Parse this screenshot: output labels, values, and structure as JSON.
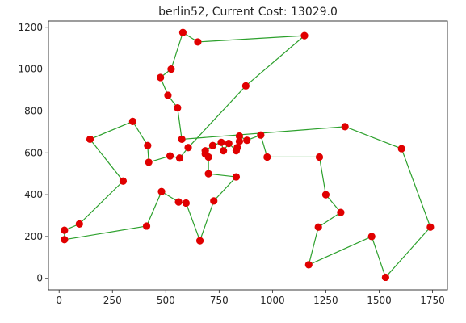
{
  "chart_data": {
    "type": "scatter",
    "title": "berlin52, Current Cost: 13029.0",
    "xlabel": "",
    "ylabel": "",
    "xlim": [
      -50,
      1820
    ],
    "ylim": [
      -55,
      1230
    ],
    "xticks": [
      0,
      250,
      500,
      750,
      1000,
      1250,
      1500,
      1750
    ],
    "yticks": [
      0,
      200,
      400,
      600,
      800,
      1000,
      1200
    ],
    "grid": false,
    "colors": {
      "points": "#e00000",
      "route": "#2ca02c",
      "axes": "#262626"
    },
    "cities": [
      {
        "x": 565,
        "y": 575
      },
      {
        "x": 25,
        "y": 185
      },
      {
        "x": 345,
        "y": 750
      },
      {
        "x": 945,
        "y": 685
      },
      {
        "x": 845,
        "y": 655
      },
      {
        "x": 880,
        "y": 660
      },
      {
        "x": 25,
        "y": 230
      },
      {
        "x": 525,
        "y": 1000
      },
      {
        "x": 580,
        "y": 1175
      },
      {
        "x": 650,
        "y": 1130
      },
      {
        "x": 1605,
        "y": 620
      },
      {
        "x": 1220,
        "y": 580
      },
      {
        "x": 1465,
        "y": 200
      },
      {
        "x": 1530,
        "y": 5
      },
      {
        "x": 845,
        "y": 680
      },
      {
        "x": 725,
        "y": 370
      },
      {
        "x": 145,
        "y": 665
      },
      {
        "x": 415,
        "y": 635
      },
      {
        "x": 510,
        "y": 875
      },
      {
        "x": 560,
        "y": 365
      },
      {
        "x": 300,
        "y": 465
      },
      {
        "x": 520,
        "y": 585
      },
      {
        "x": 480,
        "y": 415
      },
      {
        "x": 835,
        "y": 625
      },
      {
        "x": 975,
        "y": 580
      },
      {
        "x": 1215,
        "y": 245
      },
      {
        "x": 1320,
        "y": 315
      },
      {
        "x": 1250,
        "y": 400
      },
      {
        "x": 660,
        "y": 180
      },
      {
        "x": 410,
        "y": 250
      },
      {
        "x": 420,
        "y": 555
      },
      {
        "x": 575,
        "y": 665
      },
      {
        "x": 1150,
        "y": 1160
      },
      {
        "x": 700,
        "y": 580
      },
      {
        "x": 685,
        "y": 595
      },
      {
        "x": 685,
        "y": 610
      },
      {
        "x": 770,
        "y": 610
      },
      {
        "x": 795,
        "y": 645
      },
      {
        "x": 720,
        "y": 635
      },
      {
        "x": 760,
        "y": 650
      },
      {
        "x": 475,
        "y": 960
      },
      {
        "x": 95,
        "y": 260
      },
      {
        "x": 875,
        "y": 920
      },
      {
        "x": 700,
        "y": 500
      },
      {
        "x": 555,
        "y": 815
      },
      {
        "x": 830,
        "y": 485
      },
      {
        "x": 1170,
        "y": 65
      },
      {
        "x": 830,
        "y": 610
      },
      {
        "x": 605,
        "y": 625
      },
      {
        "x": 595,
        "y": 360
      },
      {
        "x": 1340,
        "y": 725
      },
      {
        "x": 1740,
        "y": 245
      }
    ],
    "route": [
      0,
      21,
      30,
      17,
      2,
      16,
      20,
      41,
      6,
      1,
      29,
      22,
      19,
      49,
      28,
      15,
      45,
      43,
      33,
      34,
      35,
      38,
      39,
      36,
      37,
      47,
      23,
      4,
      14,
      5,
      3,
      24,
      11,
      27,
      26,
      25,
      46,
      12,
      13,
      51,
      10,
      50,
      31,
      44,
      18,
      40,
      7,
      8,
      9,
      32,
      42,
      48,
      0
    ]
  }
}
